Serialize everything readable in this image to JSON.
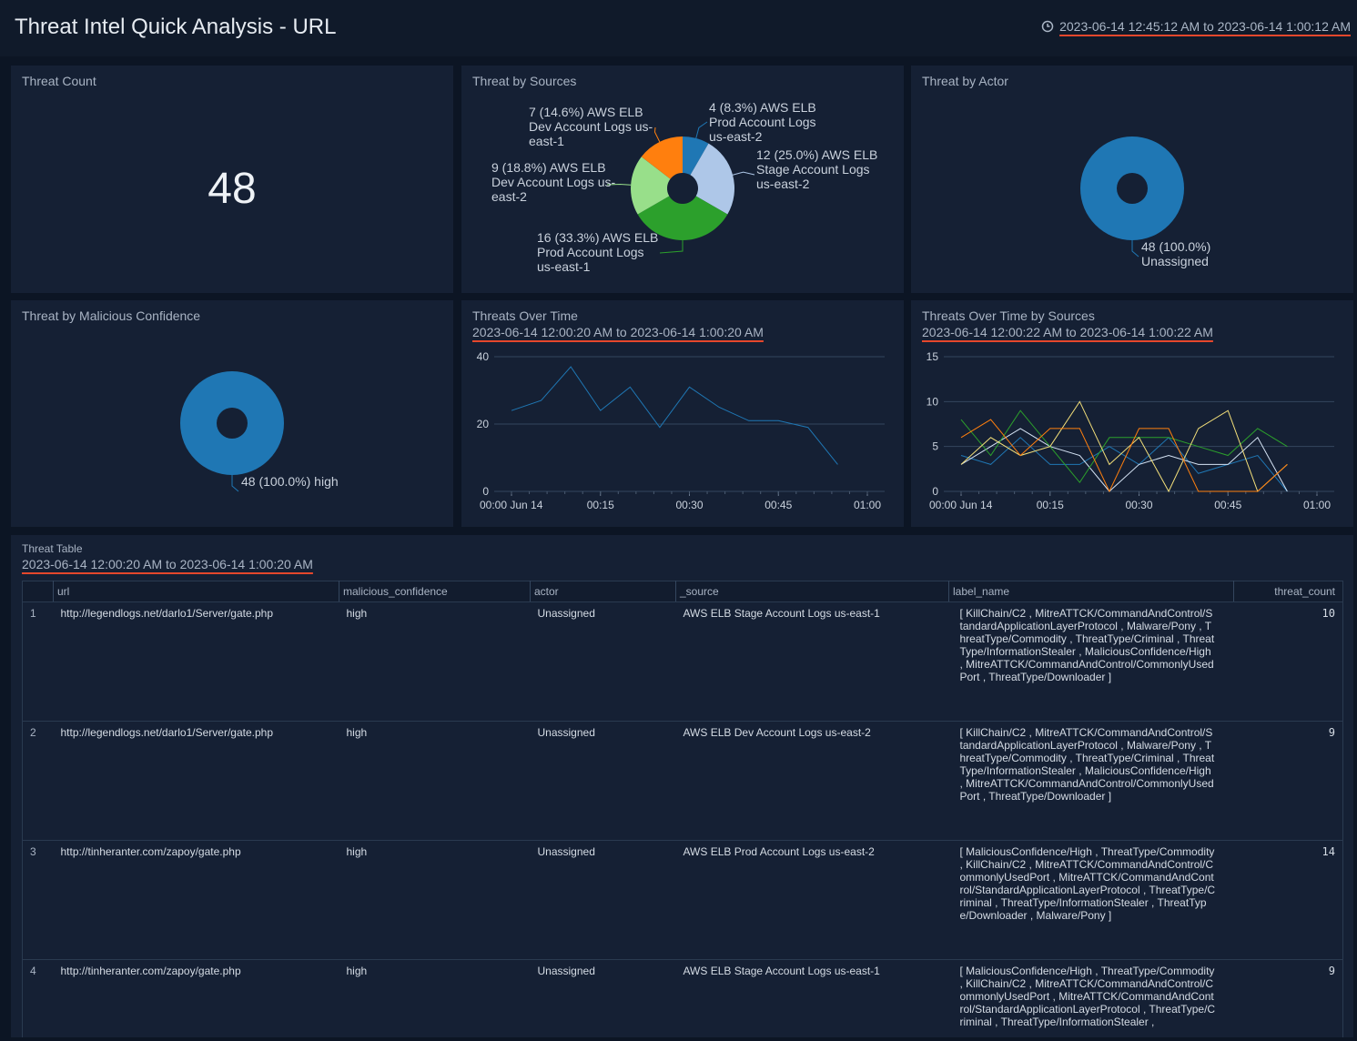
{
  "header": {
    "title": "Threat Intel Quick Analysis - URL",
    "time_range": "2023-06-14 12:45:12 AM to 2023-06-14 1:00:12 AM"
  },
  "threat_count": {
    "title": "Threat Count",
    "value": 48
  },
  "chart_data": [
    {
      "type": "pie",
      "title": "Threat by Sources",
      "categories": [
        "Prod Account Logs us-east-2",
        "AWS ELB Stage Account Logs us-east-2",
        "AWS ELB Prod Account Logs us-east-1",
        "AWS ELB Dev Account Logs us-east-2",
        "AWS ELB Dev Account Logs us-east-1"
      ],
      "values": [
        4,
        12,
        16,
        9,
        7
      ],
      "value_labels": [
        "4 (8.3%) AWS ELB",
        "12 (25.0%)",
        "16 (33.3%)",
        "9 (18.8%)",
        "7 (14.6%)"
      ],
      "colors": [
        "#1f77b4",
        "#aec7e8",
        "#2ca02c",
        "#98df8a",
        "#ff7f0e"
      ]
    },
    {
      "type": "pie",
      "title": "Threat by Actor",
      "categories": [
        "Unassigned"
      ],
      "values": [
        48
      ],
      "value_labels": [
        "48 (100.0%)"
      ],
      "colors": [
        "#1f77b4"
      ]
    },
    {
      "type": "pie",
      "title": "Threat by Malicious Confidence",
      "categories": [
        "high"
      ],
      "values": [
        48
      ],
      "value_labels": [
        "48 (100.0%)"
      ],
      "colors": [
        "#1f77b4"
      ]
    },
    {
      "type": "line",
      "title": "Threats Over Time",
      "subtitle": "2023-06-14 12:00:20 AM to 2023-06-14 1:00:20 AM",
      "x": [
        0,
        5,
        10,
        15,
        20,
        25,
        30,
        35,
        40,
        45,
        50,
        55
      ],
      "xlim": [
        0,
        60
      ],
      "xticks": [
        {
          "value": 0,
          "label": "00:00 Jun 14"
        },
        {
          "value": 15,
          "label": "00:15"
        },
        {
          "value": 30,
          "label": "00:30"
        },
        {
          "value": 45,
          "label": "00:45"
        },
        {
          "value": 60,
          "label": "01:00"
        }
      ],
      "ylim": [
        0,
        40
      ],
      "yticks": [
        0,
        20,
        40
      ],
      "grid": true,
      "series": [
        {
          "color": "#1f77b4",
          "values": [
            24,
            27,
            37,
            24,
            31,
            19,
            31,
            25,
            21,
            21,
            19,
            8
          ]
        }
      ]
    },
    {
      "type": "line",
      "title": "Threats Over Time by Sources",
      "subtitle": "2023-06-14 12:00:22 AM to 2023-06-14 1:00:22 AM",
      "x": [
        0,
        5,
        10,
        15,
        20,
        25,
        30,
        35,
        40,
        45,
        50,
        55
      ],
      "xlim": [
        0,
        60
      ],
      "xticks": [
        {
          "value": 0,
          "label": "00:00 Jun 14"
        },
        {
          "value": 15,
          "label": "00:15"
        },
        {
          "value": 30,
          "label": "00:30"
        },
        {
          "value": 45,
          "label": "00:45"
        },
        {
          "value": 60,
          "label": "01:00"
        }
      ],
      "ylim": [
        0,
        15
      ],
      "yticks": [
        0,
        5,
        10,
        15
      ],
      "grid": true,
      "series": [
        {
          "color": "#1f77b4",
          "values": [
            4,
            3,
            6,
            3,
            3,
            5,
            3,
            6,
            2,
            3,
            4,
            0
          ]
        },
        {
          "color": "#d6e4f5",
          "values": [
            3,
            5,
            7,
            5,
            4,
            0,
            3,
            4,
            3,
            3,
            6,
            0
          ]
        },
        {
          "color": "#2ca02c",
          "values": [
            8,
            4,
            9,
            5,
            1,
            6,
            6,
            6,
            5,
            4,
            7,
            5
          ]
        },
        {
          "color": "#f4e07a",
          "values": [
            3,
            6,
            4,
            5,
            10,
            3,
            6,
            0,
            7,
            9,
            0,
            3
          ]
        },
        {
          "color": "#ff7f0e",
          "values": [
            6,
            8,
            4,
            7,
            7,
            0,
            7,
            7,
            0,
            0,
            0,
            3
          ]
        }
      ]
    }
  ],
  "table": {
    "title": "Threat Table",
    "subtitle": "2023-06-14 12:00:20 AM to 2023-06-14 1:00:20 AM",
    "columns": [
      "url",
      "malicious_confidence",
      "actor",
      "_source",
      "label_name",
      "threat_count"
    ],
    "rows": [
      [
        1,
        "http://legendlogs.net/darlo1/Server/gate.php",
        "high",
        "Unassigned",
        "AWS ELB Stage Account Logs us-east-1",
        "[ KillChain/C2 , MitreATTCK/CommandAndControl/StandardApplicationLayerProtocol , Malware/Pony , ThreatType/Commodity , ThreatType/Criminal , ThreatType/InformationStealer , MaliciousConfidence/High , MitreATTCK/CommandAndControl/CommonlyUsedPort , ThreatType/Downloader ]",
        10
      ],
      [
        2,
        "http://legendlogs.net/darlo1/Server/gate.php",
        "high",
        "Unassigned",
        "AWS ELB Dev Account Logs us-east-2",
        "[ KillChain/C2 , MitreATTCK/CommandAndControl/StandardApplicationLayerProtocol , Malware/Pony , ThreatType/Commodity , ThreatType/Criminal , ThreatType/InformationStealer , MaliciousConfidence/High , MitreATTCK/CommandAndControl/CommonlyUsedPort , ThreatType/Downloader ]",
        9
      ],
      [
        3,
        "http://tinheranter.com/zapoy/gate.php",
        "high",
        "Unassigned",
        "AWS ELB Prod Account Logs us-east-2",
        "[ MaliciousConfidence/High , ThreatType/Commodity , KillChain/C2 , MitreATTCK/CommandAndControl/CommonlyUsedPort , MitreATTCK/CommandAndControl/StandardApplicationLayerProtocol , ThreatType/Criminal , ThreatType/InformationStealer , ThreatType/Downloader , Malware/Pony ]",
        14
      ],
      [
        4,
        "http://tinheranter.com/zapoy/gate.php",
        "high",
        "Unassigned",
        "AWS ELB Stage Account Logs us-east-1",
        "[ MaliciousConfidence/High , ThreatType/Commodity , KillChain/C2 , MitreATTCK/CommandAndControl/CommonlyUsedPort , MitreATTCK/CommandAndControl/StandardApplicationLayerProtocol , ThreatType/Criminal , ThreatType/InformationStealer ,",
        9
      ]
    ]
  }
}
